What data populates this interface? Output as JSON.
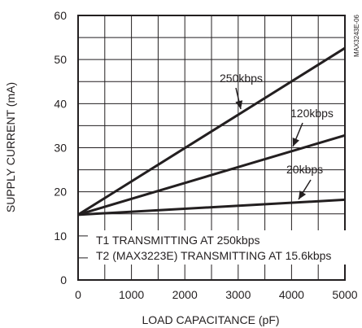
{
  "chart_data": {
    "type": "line",
    "title": "",
    "xlabel": "LOAD CAPACITANCE (pF)",
    "ylabel": "SUPPLY CURRENT (mA)",
    "xlim": [
      0,
      5000
    ],
    "ylim": [
      0,
      60
    ],
    "x_ticks": [
      0,
      1000,
      2000,
      3000,
      4000,
      5000
    ],
    "y_ticks": [
      0,
      10,
      20,
      30,
      40,
      50,
      60
    ],
    "grid": true,
    "series": [
      {
        "name": "250kbps",
        "x": [
          0,
          5000
        ],
        "y": [
          14.8,
          52.6
        ]
      },
      {
        "name": "120kbps",
        "x": [
          0,
          5000
        ],
        "y": [
          14.8,
          32.8
        ]
      },
      {
        "name": "20kbps",
        "x": [
          0,
          5000
        ],
        "y": [
          14.8,
          18.2
        ]
      }
    ],
    "annotations": [
      "T1 TRANSMITTING AT 250kbps",
      "T2 (MAX3223E) TRANSMITTING AT 15.6kbps"
    ],
    "figure_id": "MAX3243E-06"
  }
}
